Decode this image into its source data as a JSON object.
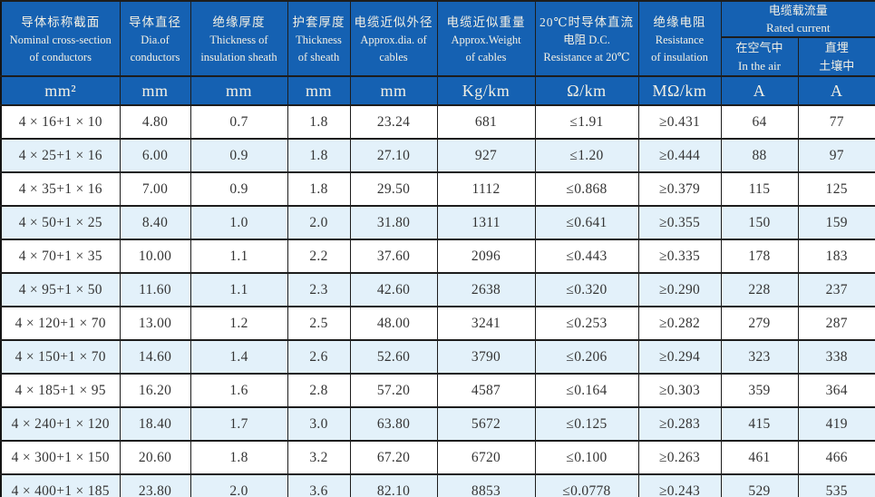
{
  "theme": {
    "header_bg": "#1561b2",
    "header_text": "#f3f0e4",
    "stripe_bg": "#e3f1fa",
    "row_bg": "#ffffff",
    "body_text": "#343434",
    "border": "#1d1d1d"
  },
  "table": {
    "headers": [
      {
        "zh": "导体标称截面",
        "en1": "Nominal cross-section",
        "en2": "of conductors",
        "unit": "mm²"
      },
      {
        "zh": "导体直径",
        "en1": "Dia.of",
        "en2": "conductors",
        "unit": "mm"
      },
      {
        "zh": "绝缘厚度",
        "en1": "Thickness of",
        "en2": "insulation sheath",
        "unit": "mm"
      },
      {
        "zh": "护套厚度",
        "en1": "Thickness",
        "en2": "of sheath",
        "unit": "mm"
      },
      {
        "zh": "电缆近似外径",
        "en1": "Approx.dia. of",
        "en2": "cables",
        "unit": "mm"
      },
      {
        "zh": "电缆近似重量",
        "en1": "Approx.Weight",
        "en2": "of cables",
        "unit": "Kg/km"
      },
      {
        "zh": "20℃时导体直流",
        "en1": "电阻 D.C.",
        "en2": "Resistance at 20℃",
        "unit": "Ω/km"
      },
      {
        "zh": "绝缘电阻",
        "en1": "Resistance",
        "en2": "of insulation",
        "unit": "MΩ/km"
      }
    ],
    "current_group": {
      "zh": "电缆载流量",
      "en": "Rated current",
      "sub": [
        {
          "line1": "在空气中",
          "line2": "In the air",
          "unit": "A"
        },
        {
          "line1": "直埋",
          "line2": "土壤中",
          "unit": "A"
        }
      ]
    },
    "column_keys": [
      "cross-section",
      "conductor-diameter",
      "insulation-thickness",
      "sheath-thickness",
      "approx-diameter",
      "approx-weight",
      "dc-resistance",
      "insulation-resistance",
      "current-in-air",
      "current-buried"
    ],
    "rows": [
      [
        "4 × 16+1 × 10",
        "4.80",
        "0.7",
        "1.8",
        "23.24",
        "681",
        "≤1.91",
        "≥0.431",
        "64",
        "77"
      ],
      [
        "4 × 25+1 × 16",
        "6.00",
        "0.9",
        "1.8",
        "27.10",
        "927",
        "≤1.20",
        "≥0.444",
        "88",
        "97"
      ],
      [
        "4 × 35+1 × 16",
        "7.00",
        "0.9",
        "1.8",
        "29.50",
        "1112",
        "≤0.868",
        "≥0.379",
        "115",
        "125"
      ],
      [
        "4 × 50+1 × 25",
        "8.40",
        "1.0",
        "2.0",
        "31.80",
        "1311",
        "≤0.641",
        "≥0.355",
        "150",
        "159"
      ],
      [
        "4 × 70+1 × 35",
        "10.00",
        "1.1",
        "2.2",
        "37.60",
        "2096",
        "≤0.443",
        "≥0.335",
        "178",
        "183"
      ],
      [
        "4 × 95+1 × 50",
        "11.60",
        "1.1",
        "2.3",
        "42.60",
        "2638",
        "≤0.320",
        "≥0.290",
        "228",
        "237"
      ],
      [
        "4 × 120+1 × 70",
        "13.00",
        "1.2",
        "2.5",
        "48.00",
        "3241",
        "≤0.253",
        "≥0.282",
        "279",
        "287"
      ],
      [
        "4 × 150+1 × 70",
        "14.60",
        "1.4",
        "2.6",
        "52.60",
        "3790",
        "≤0.206",
        "≥0.294",
        "323",
        "338"
      ],
      [
        "4 × 185+1 × 95",
        "16.20",
        "1.6",
        "2.8",
        "57.20",
        "4587",
        "≤0.164",
        "≥0.303",
        "359",
        "364"
      ],
      [
        "4 × 240+1 × 120",
        "18.40",
        "1.7",
        "3.0",
        "63.80",
        "5672",
        "≤0.125",
        "≥0.283",
        "415",
        "419"
      ],
      [
        "4 × 300+1 × 150",
        "20.60",
        "1.8",
        "3.2",
        "67.20",
        "6720",
        "≤0.100",
        "≥0.263",
        "461",
        "466"
      ],
      [
        "4 × 400+1 × 185",
        "23.80",
        "2.0",
        "3.6",
        "82.10",
        "8853",
        "≤0.0778",
        "≥0.243",
        "529",
        "535"
      ]
    ]
  }
}
